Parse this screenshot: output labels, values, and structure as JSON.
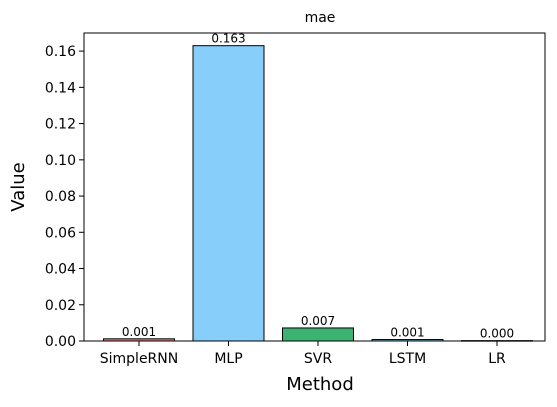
{
  "chart_data": {
    "type": "bar",
    "title": "mae",
    "xlabel": "Method",
    "ylabel": "Value",
    "categories": [
      "SimpleRNN",
      "MLP",
      "SVR",
      "LSTM",
      "LR"
    ],
    "values": [
      0.0012,
      0.163,
      0.0072,
      0.0008,
      0.0002
    ],
    "value_labels": [
      "0.001",
      "0.163",
      "0.007",
      "0.001",
      "0.000"
    ],
    "colors": [
      "#f08080",
      "#87cefa",
      "#3cb371",
      "#87ceeb",
      "#dda0dd"
    ],
    "ylim": [
      0,
      0.17
    ],
    "yticks": [
      0.0,
      0.02,
      0.04,
      0.06,
      0.08,
      0.1,
      0.12,
      0.14,
      0.16
    ],
    "ytick_labels": [
      "0.00",
      "0.02",
      "0.04",
      "0.06",
      "0.08",
      "0.10",
      "0.12",
      "0.14",
      "0.16"
    ],
    "grid": false,
    "legend": "none"
  }
}
